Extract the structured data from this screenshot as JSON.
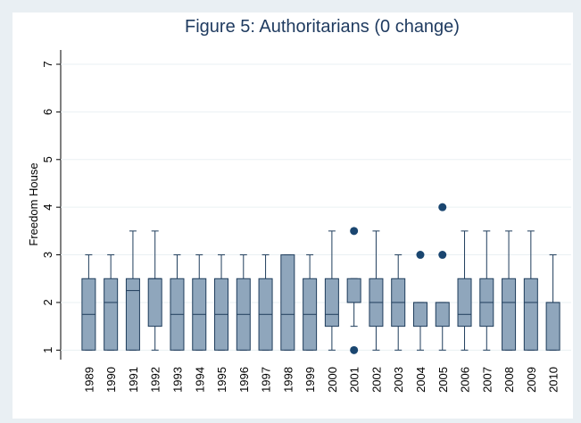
{
  "chart_data": {
    "type": "box",
    "title": "Figure 5: Authoritarians (0 change)",
    "ylabel": "Freedom House",
    "categories": [
      "1989",
      "1990",
      "1991",
      "1992",
      "1993",
      "1994",
      "1995",
      "1996",
      "1997",
      "1998",
      "1999",
      "2000",
      "2001",
      "2002",
      "2003",
      "2004",
      "2005",
      "2006",
      "2007",
      "2008",
      "2009",
      "2010"
    ],
    "whisker_low": [
      1,
      1,
      1,
      1,
      1,
      1,
      1,
      1,
      1,
      1,
      1,
      1,
      1.5,
      1,
      1,
      1,
      1,
      1,
      1,
      1,
      1,
      1
    ],
    "q1": [
      1,
      1,
      1,
      1.5,
      1,
      1,
      1,
      1,
      1,
      1,
      1,
      1.5,
      2,
      1.5,
      1.5,
      1.5,
      1.5,
      1.5,
      1.5,
      1,
      1,
      1
    ],
    "median": [
      1.75,
      2,
      2.25,
      2.5,
      1.75,
      1.75,
      1.75,
      1.75,
      1.75,
      1.75,
      1.75,
      1.75,
      2,
      2,
      2,
      2,
      2,
      1.75,
      2,
      2,
      2,
      2
    ],
    "q3": [
      2.5,
      2.5,
      2.5,
      2.5,
      2.5,
      2.5,
      2.5,
      2.5,
      2.5,
      3,
      2.5,
      2.5,
      2.5,
      2.5,
      2.5,
      2,
      2,
      2.5,
      2.5,
      2.5,
      2.5,
      2
    ],
    "whisker_high": [
      3,
      3,
      3.5,
      3.5,
      3,
      3,
      3,
      3,
      3,
      3,
      3,
      3.5,
      2.5,
      3.5,
      3,
      2,
      2,
      3.5,
      3.5,
      3.5,
      3.5,
      3
    ],
    "outliers": [
      [],
      [],
      [],
      [],
      [],
      [],
      [],
      [],
      [],
      [],
      [],
      [],
      [
        1,
        3.5
      ],
      [],
      [],
      [
        3
      ],
      [
        3,
        4
      ],
      [],
      [],
      [],
      [],
      []
    ],
    "color": "#8fa6bc",
    "edge_color": "#1f3d5c",
    "outlier_color": "#1a4670",
    "ylim": [
      0.8,
      7.3
    ],
    "yticks": [
      1,
      2,
      3,
      4,
      5,
      6,
      7
    ],
    "grid": true
  }
}
